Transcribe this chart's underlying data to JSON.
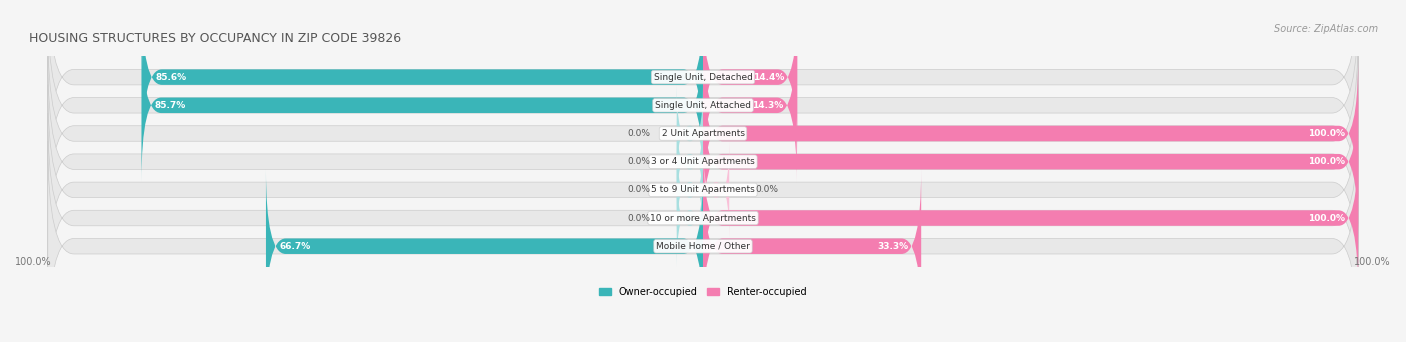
{
  "title": "HOUSING STRUCTURES BY OCCUPANCY IN ZIP CODE 39826",
  "source": "Source: ZipAtlas.com",
  "categories": [
    "Single Unit, Detached",
    "Single Unit, Attached",
    "2 Unit Apartments",
    "3 or 4 Unit Apartments",
    "5 to 9 Unit Apartments",
    "10 or more Apartments",
    "Mobile Home / Other"
  ],
  "owner_pct": [
    85.6,
    85.7,
    0.0,
    0.0,
    0.0,
    0.0,
    66.7
  ],
  "renter_pct": [
    14.4,
    14.3,
    100.0,
    100.0,
    0.0,
    100.0,
    33.3
  ],
  "owner_color": "#3ab5b8",
  "renter_color": "#f47db0",
  "owner_light": "#a8dfe0",
  "renter_light": "#f9c0d8",
  "bg_color": "#f0f0f0",
  "bar_bg": "#e8e8e8",
  "title_color": "#555555",
  "source_color": "#888888",
  "label_color": "#555555",
  "bar_height": 0.55,
  "axis_label_left": "100.0%",
  "axis_label_right": "100.0%"
}
